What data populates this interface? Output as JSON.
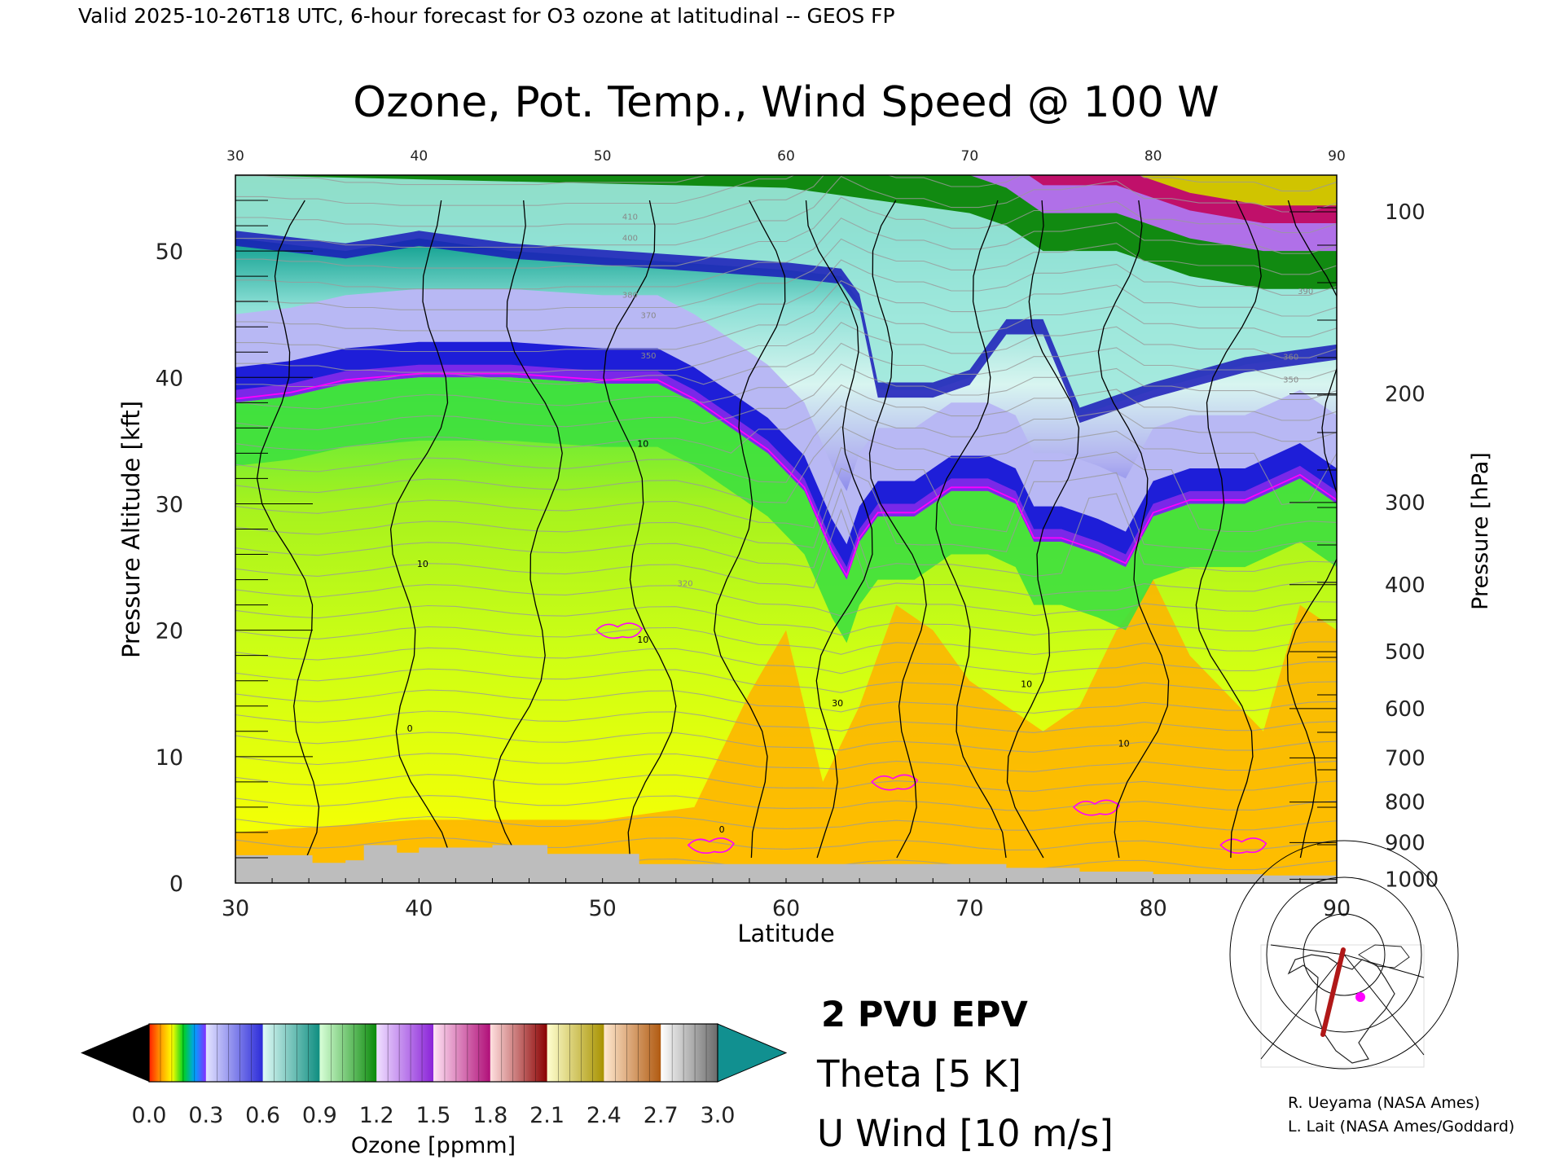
{
  "header_text": "Valid 2025-10-26T18 UTC, 6-hour forecast for O3 ozone at latitudinal -- GEOS FP",
  "chart_data": {
    "type": "heatmap",
    "title": "Ozone, Pot. Temp., Wind Speed @ 100 W",
    "xlabel": "Latitude",
    "ylabel": "Pressure Altitude [kft]",
    "y2label": "Pressure [hPa]",
    "xlim": [
      30,
      90
    ],
    "ylim": [
      0,
      56
    ],
    "x_ticks": [
      "30",
      "40",
      "50",
      "60",
      "70",
      "80",
      "90"
    ],
    "y_ticks": [
      "0",
      "10",
      "20",
      "30",
      "40",
      "50"
    ],
    "pressure_ticks": [
      {
        "label": "100",
        "kft": 53.1
      },
      {
        "label": "200",
        "kft": 38.7
      },
      {
        "label": "300",
        "kft": 30.1
      },
      {
        "label": "400",
        "kft": 23.6
      },
      {
        "label": "500",
        "kft": 18.3
      },
      {
        "label": "600",
        "kft": 13.8
      },
      {
        "label": "700",
        "kft": 9.9
      },
      {
        "label": "800",
        "kft": 6.4
      },
      {
        "label": "900",
        "kft": 3.2
      },
      {
        "label": "1000",
        "kft": 0.3
      }
    ],
    "tropopause_kft": [
      {
        "lat": 30,
        "kft": 38
      },
      {
        "lat": 33,
        "kft": 38.5
      },
      {
        "lat": 36,
        "kft": 39.5
      },
      {
        "lat": 40,
        "kft": 40
      },
      {
        "lat": 45,
        "kft": 40
      },
      {
        "lat": 50,
        "kft": 39.5
      },
      {
        "lat": 53,
        "kft": 39.5
      },
      {
        "lat": 55,
        "kft": 38
      },
      {
        "lat": 57,
        "kft": 36
      },
      {
        "lat": 59,
        "kft": 34
      },
      {
        "lat": 61,
        "kft": 31
      },
      {
        "lat": 62.5,
        "kft": 26
      },
      {
        "lat": 63.3,
        "kft": 24
      },
      {
        "lat": 64,
        "kft": 27
      },
      {
        "lat": 65,
        "kft": 29
      },
      {
        "lat": 67,
        "kft": 29
      },
      {
        "lat": 69,
        "kft": 31
      },
      {
        "lat": 71,
        "kft": 31
      },
      {
        "lat": 72.5,
        "kft": 30
      },
      {
        "lat": 73.5,
        "kft": 27
      },
      {
        "lat": 75,
        "kft": 27
      },
      {
        "lat": 77,
        "kft": 26
      },
      {
        "lat": 78.5,
        "kft": 25
      },
      {
        "lat": 80,
        "kft": 29
      },
      {
        "lat": 82,
        "kft": 30
      },
      {
        "lat": 85,
        "kft": 30
      },
      {
        "lat": 88,
        "kft": 32
      },
      {
        "lat": 90,
        "kft": 30
      }
    ],
    "stratosphere_mid_kft": [
      {
        "lat": 30,
        "kft": 51
      },
      {
        "lat": 36,
        "kft": 50
      },
      {
        "lat": 40,
        "kft": 51
      },
      {
        "lat": 45,
        "kft": 50
      },
      {
        "lat": 50,
        "kft": 49.5
      },
      {
        "lat": 55,
        "kft": 49
      },
      {
        "lat": 60,
        "kft": 48.5
      },
      {
        "lat": 63,
        "kft": 48
      },
      {
        "lat": 64,
        "kft": 46
      },
      {
        "lat": 65,
        "kft": 39
      },
      {
        "lat": 68,
        "kft": 39
      },
      {
        "lat": 70,
        "kft": 40
      },
      {
        "lat": 72,
        "kft": 44
      },
      {
        "lat": 74,
        "kft": 44
      },
      {
        "lat": 76,
        "kft": 37
      },
      {
        "lat": 80,
        "kft": 39
      },
      {
        "lat": 85,
        "kft": 41
      },
      {
        "lat": 90,
        "kft": 42
      }
    ],
    "upper_high_kft": [
      {
        "lat": 30,
        "kft": 56
      },
      {
        "lat": 60,
        "kft": 55
      },
      {
        "lat": 65,
        "kft": 54
      },
      {
        "lat": 70,
        "kft": 53
      },
      {
        "lat": 72,
        "kft": 52
      },
      {
        "lat": 74,
        "kft": 50
      },
      {
        "lat": 78,
        "kft": 50
      },
      {
        "lat": 82,
        "kft": 48
      },
      {
        "lat": 86,
        "kft": 47
      },
      {
        "lat": 90,
        "kft": 47
      }
    ],
    "lower_trop_orange_kft": [
      {
        "lat": 30,
        "kft": 4
      },
      {
        "lat": 40,
        "kft": 5
      },
      {
        "lat": 50,
        "kft": 5
      },
      {
        "lat": 55,
        "kft": 6
      },
      {
        "lat": 58,
        "kft": 15
      },
      {
        "lat": 60,
        "kft": 20
      },
      {
        "lat": 62,
        "kft": 8
      },
      {
        "lat": 64,
        "kft": 14
      },
      {
        "lat": 66,
        "kft": 22
      },
      {
        "lat": 68,
        "kft": 20
      },
      {
        "lat": 70,
        "kft": 16
      },
      {
        "lat": 72,
        "kft": 14
      },
      {
        "lat": 74,
        "kft": 12
      },
      {
        "lat": 76,
        "kft": 14
      },
      {
        "lat": 78,
        "kft": 20
      },
      {
        "lat": 80,
        "kft": 24
      },
      {
        "lat": 82,
        "kft": 18
      },
      {
        "lat": 86,
        "kft": 12
      },
      {
        "lat": 88,
        "kft": 22
      },
      {
        "lat": 90,
        "kft": 20
      }
    ],
    "terrain_kft": [
      {
        "lat": 30,
        "kft": 2.2
      },
      {
        "lat": 34,
        "kft": 2.2
      },
      {
        "lat": 34.2,
        "kft": 1.6
      },
      {
        "lat": 36,
        "kft": 1.8
      },
      {
        "lat": 37,
        "kft": 3.0
      },
      {
        "lat": 38.5,
        "kft": 3.0
      },
      {
        "lat": 38.8,
        "kft": 2.4
      },
      {
        "lat": 40,
        "kft": 2.8
      },
      {
        "lat": 44,
        "kft": 3.0
      },
      {
        "lat": 47,
        "kft": 2.3
      },
      {
        "lat": 51.8,
        "kft": 2.3
      },
      {
        "lat": 52,
        "kft": 1.5
      },
      {
        "lat": 70,
        "kft": 1.5
      },
      {
        "lat": 72,
        "kft": 1.2
      },
      {
        "lat": 76,
        "kft": 0.9
      },
      {
        "lat": 80,
        "kft": 0.7
      },
      {
        "lat": 86,
        "kft": 0.6
      },
      {
        "lat": 90,
        "kft": 0.5
      }
    ],
    "theta_labels": [
      {
        "text": "410",
        "lat": 51.5,
        "kft": 52.5
      },
      {
        "text": "400",
        "lat": 51.5,
        "kft": 50.8
      },
      {
        "text": "380",
        "lat": 51.5,
        "kft": 46.3
      },
      {
        "text": "370",
        "lat": 52.5,
        "kft": 44.7
      },
      {
        "text": "350",
        "lat": 52.5,
        "kft": 41.5
      },
      {
        "text": "320",
        "lat": 54.5,
        "kft": 23.5
      },
      {
        "text": "360",
        "lat": 87.5,
        "kft": 41.4
      },
      {
        "text": "350",
        "lat": 87.5,
        "kft": 39.6
      },
      {
        "text": "390",
        "lat": 88.3,
        "kft": 46.6
      }
    ],
    "wind_labels": [
      {
        "text": "10",
        "lat": 40.2,
        "kft": 25.0
      },
      {
        "text": "10",
        "lat": 52.2,
        "kft": 34.5
      },
      {
        "text": "10",
        "lat": 52.2,
        "kft": 19.0
      },
      {
        "text": "30",
        "lat": 62.8,
        "kft": 14.0
      },
      {
        "text": "10",
        "lat": 73.1,
        "kft": 15.5
      },
      {
        "text": "10",
        "lat": 78.4,
        "kft": 10.8
      },
      {
        "text": "0",
        "lat": 39.5,
        "kft": 12.0
      },
      {
        "text": "0",
        "lat": 56.5,
        "kft": 4.0
      }
    ],
    "wind_contours_lat": [
      33,
      40,
      46,
      52,
      58,
      63,
      66,
      70,
      74,
      79,
      84,
      89
    ],
    "epv_contours": [
      {
        "lat": 51,
        "kft": 20
      },
      {
        "lat": 56,
        "kft": 3
      },
      {
        "lat": 66,
        "kft": 8
      },
      {
        "lat": 77,
        "kft": 6
      },
      {
        "lat": 85,
        "kft": 3
      }
    ],
    "colorbar": {
      "ticks": [
        "0.0",
        "0.3",
        "0.6",
        "0.9",
        "1.2",
        "1.5",
        "1.8",
        "2.1",
        "2.4",
        "2.7",
        "3.0"
      ],
      "label": "Ozone [ppmm]",
      "segments": [
        {
          "from": "#ff2a00",
          "to": "#00d0ff",
          "rainbow": true
        },
        {
          "from": "#e4e4ff",
          "to": "#2a2ad8"
        },
        {
          "from": "#e0fbf6",
          "to": "#0e8d80"
        },
        {
          "from": "#d8ffd8",
          "to": "#0a8a0a"
        },
        {
          "from": "#f0e0ff",
          "to": "#8a22d8"
        },
        {
          "from": "#ffe4f4",
          "to": "#b00e78"
        },
        {
          "from": "#ffe0e0",
          "to": "#8a0000"
        },
        {
          "from": "#ffffd0",
          "to": "#a89200"
        },
        {
          "from": "#ffe8d0",
          "to": "#b05a10"
        },
        {
          "from": "#ffffff",
          "to": "#6a6a6a"
        }
      ],
      "under_color": "#000000",
      "over_color": "#119090"
    }
  },
  "legend": {
    "epv": "2 PVU EPV",
    "theta": "Theta [5 K]",
    "uwind": "U Wind [10 m/s]",
    "epv_color": "#ff00ff",
    "theta_color": "#a8a8a8",
    "uwind_color": "#000000"
  },
  "credits": {
    "line1": "R. Ueyama (NASA Ames)",
    "line2": "L. Lait (NASA Ames/Goddard)"
  },
  "colors": {
    "trop_yellow": "#ffff00",
    "trop_green": "#a6f21e",
    "tropopause_blue": "#1e1ed8",
    "tropopause_purple": "#7a28e8",
    "strat_lavender": "#b8b8f4",
    "strat_teal": "#9ee8dc",
    "upper_green": "#118a11",
    "terrain": "#bdbdbd",
    "orange": "#ffb100"
  }
}
